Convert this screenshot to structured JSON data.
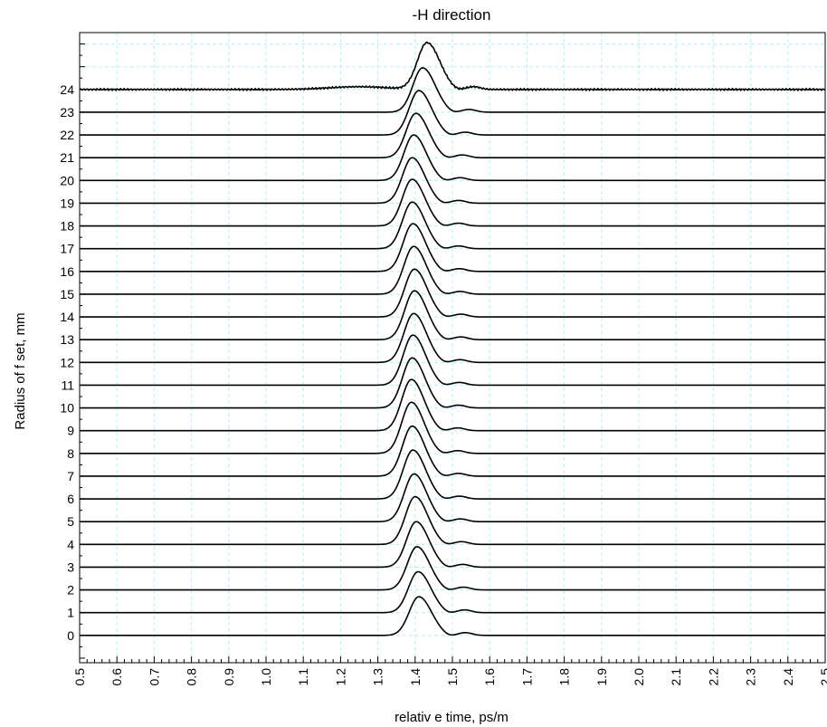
{
  "chart_data": {
    "type": "line",
    "title": "-H direction",
    "xlabel": "relativ e time, ps/m",
    "ylabel": "Radius of f set, mm",
    "xlim": [
      0.5,
      2.5
    ],
    "ylim": [
      -1.2,
      26.5
    ],
    "x_ticks": [
      "0.5",
      "0.6",
      "0.7",
      "0.8",
      "0.9",
      "1.0",
      "1.1",
      "1.2",
      "1.3",
      "1.4",
      "1.5",
      "1.6",
      "1.7",
      "1.8",
      "1.9",
      "2.0",
      "2.1",
      "2.2",
      "2.3",
      "2.4",
      "2.5"
    ],
    "y_ticks": [
      "0",
      "1",
      "2",
      "3",
      "4",
      "5",
      "6",
      "7",
      "8",
      "9",
      "10",
      "11",
      "12",
      "13",
      "14",
      "15",
      "16",
      "17",
      "18",
      "19",
      "20",
      "21",
      "22",
      "23",
      "24"
    ],
    "grid": true,
    "grid_color": "#b3f0f5",
    "line_color": "#000000",
    "series": [
      {
        "offset": 0,
        "peak_x": 1.41,
        "peak_height": 1.7
      },
      {
        "offset": 1,
        "peak_x": 1.408,
        "peak_height": 1.8
      },
      {
        "offset": 2,
        "peak_x": 1.405,
        "peak_height": 1.9
      },
      {
        "offset": 3,
        "peak_x": 1.403,
        "peak_height": 2.0
      },
      {
        "offset": 4,
        "peak_x": 1.4,
        "peak_height": 2.1
      },
      {
        "offset": 5,
        "peak_x": 1.397,
        "peak_height": 2.1
      },
      {
        "offset": 6,
        "peak_x": 1.394,
        "peak_height": 2.15
      },
      {
        "offset": 7,
        "peak_x": 1.392,
        "peak_height": 2.2
      },
      {
        "offset": 8,
        "peak_x": 1.39,
        "peak_height": 2.25
      },
      {
        "offset": 9,
        "peak_x": 1.39,
        "peak_height": 2.25
      },
      {
        "offset": 10,
        "peak_x": 1.392,
        "peak_height": 2.2
      },
      {
        "offset": 11,
        "peak_x": 1.394,
        "peak_height": 2.2
      },
      {
        "offset": 12,
        "peak_x": 1.396,
        "peak_height": 2.15
      },
      {
        "offset": 13,
        "peak_x": 1.398,
        "peak_height": 2.15
      },
      {
        "offset": 14,
        "peak_x": 1.398,
        "peak_height": 2.1
      },
      {
        "offset": 15,
        "peak_x": 1.396,
        "peak_height": 2.1
      },
      {
        "offset": 16,
        "peak_x": 1.394,
        "peak_height": 2.1
      },
      {
        "offset": 17,
        "peak_x": 1.392,
        "peak_height": 2.05
      },
      {
        "offset": 18,
        "peak_x": 1.392,
        "peak_height": 2.05
      },
      {
        "offset": 19,
        "peak_x": 1.392,
        "peak_height": 2.0
      },
      {
        "offset": 20,
        "peak_x": 1.396,
        "peak_height": 2.0
      },
      {
        "offset": 21,
        "peak_x": 1.402,
        "peak_height": 1.95
      },
      {
        "offset": 22,
        "peak_x": 1.41,
        "peak_height": 1.95
      },
      {
        "offset": 23,
        "peak_x": 1.42,
        "peak_height": 1.95
      },
      {
        "offset": 24,
        "peak_x": 1.432,
        "peak_height": 2.05
      }
    ]
  }
}
